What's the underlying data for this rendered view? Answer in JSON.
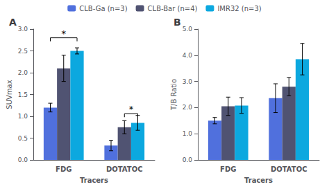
{
  "chart_data": [
    {
      "type": "bar",
      "title": "A",
      "xlabel": "Tracers",
      "ylabel": "SUVmax",
      "categories": [
        "FDG",
        "DOTATOC"
      ],
      "series": [
        {
          "name": "CLB-Ga (n=3)",
          "values": [
            1.2,
            0.33
          ],
          "errors": [
            0.1,
            0.12
          ]
        },
        {
          "name": "CLB-Bar (n=4)",
          "values": [
            2.1,
            0.75
          ],
          "errors": [
            0.3,
            0.15
          ]
        },
        {
          "name": "IMR32 (n=3)",
          "values": [
            2.5,
            0.85
          ],
          "errors": [
            0.07,
            0.17
          ]
        }
      ],
      "ylim": [
        0.0,
        3.0
      ],
      "yticks": [
        {
          "value": 0,
          "label": "0.0"
        },
        0.5,
        {
          "value": 1,
          "label": "1.0"
        },
        1.5,
        {
          "value": 2,
          "label": "2.0"
        },
        2.5,
        {
          "value": 3,
          "label": "3.0"
        }
      ],
      "grid": false,
      "legend": "top",
      "annotations": [
        {
          "text": "*",
          "category": "FDG",
          "from": "CLB-Ga (n=3)",
          "to": "IMR32 (n=3)",
          "y": 2.72
        },
        {
          "text": "*",
          "category": "DOTATOC",
          "from": "CLB-Bar (n=4)",
          "to": "IMR32 (n=3)",
          "y": 0.98
        }
      ]
    },
    {
      "type": "bar",
      "title": "B",
      "xlabel": "Tracers",
      "ylabel": "T/B Ratio",
      "categories": [
        "FDG",
        "DOTATOC"
      ],
      "series": [
        {
          "name": "CLB-Ga (n=3)",
          "values": [
            1.5,
            2.36
          ],
          "errors": [
            0.12,
            0.55
          ]
        },
        {
          "name": "CLB-Bar (n=4)",
          "values": [
            2.05,
            2.8
          ],
          "errors": [
            0.35,
            0.35
          ]
        },
        {
          "name": "IMR32 (n=3)",
          "values": [
            2.08,
            3.85
          ],
          "errors": [
            0.3,
            0.6
          ]
        }
      ],
      "ylim": [
        0.0,
        5.0
      ],
      "yticks": [
        {
          "value": 0,
          "label": "0.0"
        },
        {
          "value": 1,
          "label": "1.0"
        },
        {
          "value": 2,
          "label": "2.0"
        },
        {
          "value": 3,
          "label": "3.0"
        },
        {
          "value": 4,
          "label": "4.0"
        },
        {
          "value": 5,
          "label": "5.0"
        }
      ],
      "grid": false,
      "legend": "top"
    }
  ]
}
